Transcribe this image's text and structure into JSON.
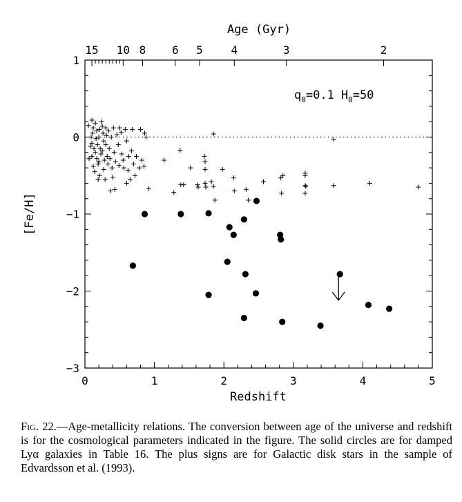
{
  "chart_data": {
    "type": "scatter",
    "xlabel": "Redshift",
    "ylabel": "[Fe/H]",
    "top_axis_label": "Age (Gyr)",
    "xlim": [
      0,
      5
    ],
    "ylim": [
      -3,
      1
    ],
    "x_ticks": [
      0,
      1,
      2,
      3,
      4,
      5
    ],
    "x_tick_labels": [
      "0",
      "1",
      "2",
      "3",
      "4",
      "5"
    ],
    "y_ticks": [
      1,
      0,
      -1,
      -2,
      -3
    ],
    "y_tick_labels": [
      "1",
      "0",
      "−1",
      "−2",
      "−3"
    ],
    "top_ticks": [
      {
        "label": "15",
        "z": 0.1
      },
      {
        "label": "10",
        "z": 0.55
      },
      {
        "label": "8",
        "z": 0.83
      },
      {
        "label": "6",
        "z": 1.3
      },
      {
        "label": "5",
        "z": 1.65
      },
      {
        "label": "4",
        "z": 2.15
      },
      {
        "label": "3",
        "z": 2.9
      },
      {
        "label": "2",
        "z": 4.3
      }
    ],
    "top_minor_ticks": [
      0.15,
      0.2,
      0.25,
      0.3,
      0.35,
      0.4,
      0.45,
      0.5
    ],
    "reference_line": {
      "y": 0,
      "style": "dotted"
    },
    "annotation_q": "q",
    "annotation_q_sub": "0",
    "annotation_q_val": "=0.1",
    "annotation_h": "H",
    "annotation_h_sub": "0",
    "annotation_h_val": "=50",
    "series": [
      {
        "marker": "circle",
        "points": [
          [
            0.69,
            -1.67
          ],
          [
            0.86,
            -1.0
          ],
          [
            1.38,
            -1.0
          ],
          [
            1.78,
            -0.99
          ],
          [
            1.78,
            -2.05
          ],
          [
            2.05,
            -1.62
          ],
          [
            2.08,
            -1.17
          ],
          [
            2.14,
            -1.27
          ],
          [
            2.29,
            -1.07
          ],
          [
            2.31,
            -1.78
          ],
          [
            2.29,
            -2.35
          ],
          [
            2.46,
            -2.03
          ],
          [
            2.47,
            -0.83
          ],
          [
            2.81,
            -1.27
          ],
          [
            2.82,
            -1.33
          ],
          [
            2.84,
            -2.4
          ],
          [
            3.39,
            -2.45
          ],
          [
            3.67,
            -1.78
          ],
          [
            4.08,
            -2.18
          ],
          [
            4.38,
            -2.23
          ]
        ]
      },
      {
        "marker": "plus",
        "points": [
          [
            0.1,
            0.22
          ],
          [
            0.12,
            0.12
          ],
          [
            0.11,
            0.05
          ],
          [
            0.1,
            -0.08
          ],
          [
            0.13,
            -0.15
          ],
          [
            0.1,
            -0.25
          ],
          [
            0.12,
            -0.38
          ],
          [
            0.15,
            0.18
          ],
          [
            0.17,
            0.08
          ],
          [
            0.16,
            -0.02
          ],
          [
            0.18,
            -0.1
          ],
          [
            0.15,
            -0.2
          ],
          [
            0.17,
            -0.28
          ],
          [
            0.19,
            -0.35
          ],
          [
            0.2,
            0.0
          ],
          [
            0.21,
            0.1
          ],
          [
            0.22,
            -0.15
          ],
          [
            0.23,
            -0.22
          ],
          [
            0.2,
            -0.32
          ],
          [
            0.21,
            -0.5
          ],
          [
            0.24,
            0.2
          ],
          [
            0.25,
            0.14
          ],
          [
            0.26,
            0.05
          ],
          [
            0.27,
            -0.05
          ],
          [
            0.25,
            -0.18
          ],
          [
            0.28,
            -0.3
          ],
          [
            0.27,
            -0.42
          ],
          [
            0.3,
            0.12
          ],
          [
            0.31,
            0.02
          ],
          [
            0.3,
            -0.1
          ],
          [
            0.32,
            -0.25
          ],
          [
            0.29,
            -0.55
          ],
          [
            0.33,
            -0.35
          ],
          [
            0.34,
            0.08
          ],
          [
            0.35,
            -0.15
          ],
          [
            0.36,
            -0.28
          ],
          [
            0.37,
            -0.7
          ],
          [
            0.38,
            0.0
          ],
          [
            0.39,
            -0.4
          ],
          [
            0.4,
            -0.52
          ],
          [
            0.41,
            0.12
          ],
          [
            0.42,
            -0.2
          ],
          [
            0.43,
            -0.68
          ],
          [
            0.44,
            -0.32
          ],
          [
            0.46,
            0.03
          ],
          [
            0.48,
            -0.1
          ],
          [
            0.49,
            -0.37
          ],
          [
            0.5,
            0.12
          ],
          [
            0.52,
            0.06
          ],
          [
            0.53,
            -0.22
          ],
          [
            0.55,
            -0.3
          ],
          [
            0.56,
            -0.4
          ],
          [
            0.58,
            0.1
          ],
          [
            0.6,
            -0.05
          ],
          [
            0.6,
            -0.6
          ],
          [
            0.62,
            -0.43
          ],
          [
            0.63,
            -0.25
          ],
          [
            0.65,
            -0.55
          ],
          [
            0.67,
            -0.18
          ],
          [
            0.68,
            0.1
          ],
          [
            0.7,
            -0.35
          ],
          [
            0.72,
            -0.5
          ],
          [
            0.74,
            -0.25
          ],
          [
            0.78,
            -0.4
          ],
          [
            0.8,
            0.1
          ],
          [
            0.82,
            -0.3
          ],
          [
            0.85,
            -0.38
          ],
          [
            0.86,
            0.05
          ],
          [
            0.88,
            0.0
          ],
          [
            0.92,
            -0.67
          ],
          [
            0.05,
            0.15
          ],
          [
            0.06,
            -0.28
          ],
          [
            0.08,
            -0.12
          ],
          [
            0.09,
            0.0
          ],
          [
            0.14,
            -0.45
          ],
          [
            0.19,
            -0.55
          ],
          [
            1.14,
            -0.3
          ],
          [
            1.28,
            -0.72
          ],
          [
            1.37,
            -0.17
          ],
          [
            1.38,
            -0.62
          ],
          [
            1.42,
            -0.62
          ],
          [
            1.52,
            -0.4
          ],
          [
            1.62,
            -0.62
          ],
          [
            1.63,
            -0.65
          ],
          [
            1.72,
            -0.25
          ],
          [
            1.73,
            -0.32
          ],
          [
            1.73,
            -0.42
          ],
          [
            1.73,
            -0.6
          ],
          [
            1.74,
            -0.65
          ],
          [
            1.82,
            -0.58
          ],
          [
            1.85,
            -0.64
          ],
          [
            1.85,
            0.04
          ],
          [
            1.87,
            -0.82
          ],
          [
            1.98,
            -0.42
          ],
          [
            2.14,
            -0.53
          ],
          [
            2.15,
            -0.7
          ],
          [
            2.32,
            -0.68
          ],
          [
            2.35,
            -0.82
          ],
          [
            2.57,
            -0.58
          ],
          [
            2.82,
            -0.53
          ],
          [
            2.83,
            -0.73
          ],
          [
            2.85,
            -0.5
          ],
          [
            3.17,
            -0.47
          ],
          [
            3.17,
            -0.5
          ],
          [
            3.17,
            -0.63
          ],
          [
            3.18,
            -0.64
          ],
          [
            3.17,
            -0.73
          ],
          [
            3.58,
            -0.03
          ],
          [
            3.58,
            -0.63
          ],
          [
            4.1,
            -0.6
          ],
          [
            4.8,
            -0.65
          ]
        ]
      }
    ],
    "upper_limit_arrow": {
      "x": 3.65,
      "y_from": -1.78,
      "y_to": -2.12
    }
  },
  "caption": {
    "lead": "Fig. 22.",
    "text": "—Age-metallicity relations. The conversion between age of the universe and redshift is for the cosmological parameters indicated in the figure. The solid circles are for damped Lyα galaxies in Table 16. The plus signs are for Galactic disk stars in the sample of Edvardsson et al. (1993)."
  }
}
